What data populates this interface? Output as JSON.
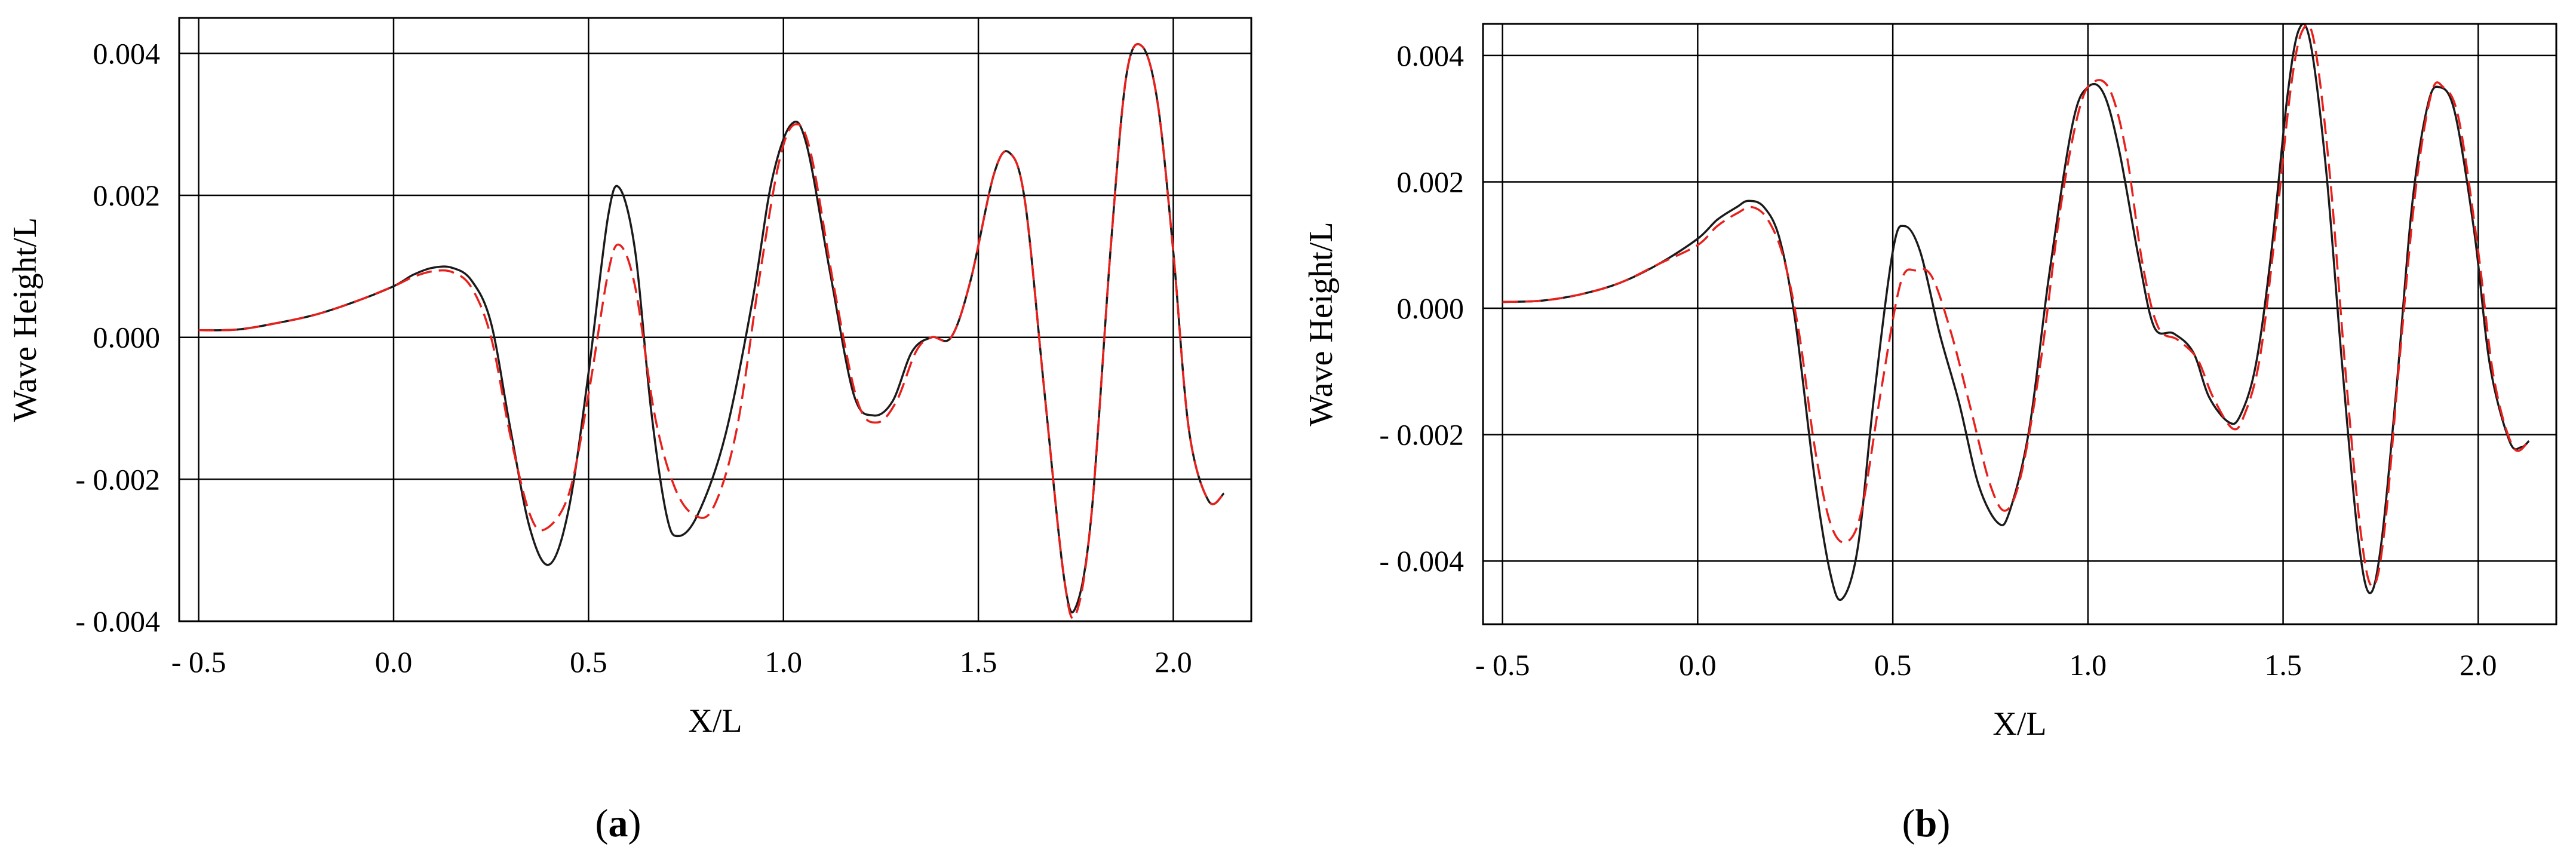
{
  "chart_data": [
    {
      "type": "line",
      "panel_label": "a",
      "xlabel": "X/L",
      "ylabel": "Wave Height/L",
      "xlim": [
        -0.55,
        2.2
      ],
      "ylim": [
        -0.004,
        0.0045
      ],
      "x_ticks": [
        -0.5,
        0.0,
        0.5,
        1.0,
        1.5,
        2.0
      ],
      "x_tick_labels": [
        "- 0.5",
        "0.0",
        "0.5",
        "1.0",
        "1.5",
        "2.0"
      ],
      "y_ticks": [
        -0.004,
        -0.002,
        0.0,
        0.002,
        0.004
      ],
      "y_tick_labels": [
        "- 0.004",
        "- 0.002",
        "0.000",
        "0.002",
        "0.004"
      ],
      "grid": true,
      "series": [
        {
          "style": "solid",
          "color": "#1a1a1a",
          "points": [
            [
              -0.5,
              0.0001
            ],
            [
              -0.4,
              0.00011
            ],
            [
              -0.3,
              0.0002
            ],
            [
              -0.2,
              0.00032
            ],
            [
              -0.1,
              0.0005
            ],
            [
              0.0,
              0.00072
            ],
            [
              0.05,
              0.00088
            ],
            [
              0.1,
              0.00098
            ],
            [
              0.15,
              0.00098
            ],
            [
              0.2,
              0.0008
            ],
            [
              0.25,
              0.0002
            ],
            [
              0.3,
              -0.0013
            ],
            [
              0.35,
              -0.0027
            ],
            [
              0.4,
              -0.0032
            ],
            [
              0.45,
              -0.0024
            ],
            [
              0.5,
              -0.0005
            ],
            [
              0.55,
              0.0017
            ],
            [
              0.58,
              0.0021
            ],
            [
              0.62,
              0.0012
            ],
            [
              0.66,
              -0.001
            ],
            [
              0.7,
              -0.0025
            ],
            [
              0.73,
              -0.0028
            ],
            [
              0.78,
              -0.0025
            ],
            [
              0.85,
              -0.0014
            ],
            [
              0.92,
              0.0005
            ],
            [
              0.97,
              0.0022
            ],
            [
              1.02,
              0.003
            ],
            [
              1.06,
              0.0027
            ],
            [
              1.12,
              0.0009
            ],
            [
              1.18,
              -0.0008
            ],
            [
              1.23,
              -0.0011
            ],
            [
              1.28,
              -0.0009
            ],
            [
              1.33,
              -0.0002
            ],
            [
              1.38,
              0.0
            ],
            [
              1.43,
              0.0
            ],
            [
              1.48,
              0.0008
            ],
            [
              1.54,
              0.0023
            ],
            [
              1.58,
              0.0026
            ],
            [
              1.62,
              0.0019
            ],
            [
              1.67,
              -0.0008
            ],
            [
              1.72,
              -0.0034
            ],
            [
              1.75,
              -0.0038
            ],
            [
              1.79,
              -0.0025
            ],
            [
              1.84,
              0.0013
            ],
            [
              1.88,
              0.0037
            ],
            [
              1.92,
              0.0041
            ],
            [
              1.96,
              0.0033
            ],
            [
              2.0,
              0.0012
            ],
            [
              2.04,
              -0.0013
            ],
            [
              2.09,
              -0.0023
            ],
            [
              2.13,
              -0.0022
            ]
          ]
        },
        {
          "style": "dashed",
          "color": "#e8201c",
          "points": [
            [
              -0.5,
              0.0001
            ],
            [
              -0.4,
              0.00011
            ],
            [
              -0.3,
              0.0002
            ],
            [
              -0.2,
              0.00032
            ],
            [
              -0.1,
              0.0005
            ],
            [
              0.0,
              0.00072
            ],
            [
              0.05,
              0.00085
            ],
            [
              0.1,
              0.00093
            ],
            [
              0.15,
              0.00092
            ],
            [
              0.2,
              0.0007
            ],
            [
              0.25,
              0.0
            ],
            [
              0.3,
              -0.0014
            ],
            [
              0.35,
              -0.0025
            ],
            [
              0.39,
              -0.0027
            ],
            [
              0.45,
              -0.0022
            ],
            [
              0.5,
              -0.0008
            ],
            [
              0.55,
              0.0009
            ],
            [
              0.58,
              0.0013
            ],
            [
              0.62,
              0.0007
            ],
            [
              0.67,
              -0.0011
            ],
            [
              0.72,
              -0.0021
            ],
            [
              0.77,
              -0.0025
            ],
            [
              0.82,
              -0.0024
            ],
            [
              0.88,
              -0.0013
            ],
            [
              0.94,
              0.0009
            ],
            [
              0.99,
              0.0025
            ],
            [
              1.03,
              0.003
            ],
            [
              1.07,
              0.0026
            ],
            [
              1.13,
              0.0007
            ],
            [
              1.19,
              -0.0009
            ],
            [
              1.24,
              -0.0012
            ],
            [
              1.29,
              -0.0009
            ],
            [
              1.34,
              -0.0002
            ],
            [
              1.38,
              0.0
            ],
            [
              1.43,
              0.0
            ],
            [
              1.48,
              0.0008
            ],
            [
              1.54,
              0.0023
            ],
            [
              1.58,
              0.0026
            ],
            [
              1.62,
              0.0019
            ],
            [
              1.67,
              -0.0008
            ],
            [
              1.72,
              -0.0034
            ],
            [
              1.75,
              -0.0039
            ],
            [
              1.79,
              -0.0025
            ],
            [
              1.84,
              0.0013
            ],
            [
              1.88,
              0.0037
            ],
            [
              1.92,
              0.0041
            ],
            [
              1.96,
              0.0033
            ],
            [
              2.0,
              0.0012
            ],
            [
              2.04,
              -0.0013
            ],
            [
              2.09,
              -0.0023
            ],
            [
              2.13,
              -0.0022
            ]
          ]
        }
      ]
    },
    {
      "type": "line",
      "panel_label": "b",
      "xlabel": "X/L",
      "ylabel": "Wave Height/L",
      "xlim": [
        -0.55,
        2.2
      ],
      "ylim": [
        -0.005,
        0.0045
      ],
      "x_ticks": [
        -0.5,
        0.0,
        0.5,
        1.0,
        1.5,
        2.0
      ],
      "x_tick_labels": [
        "- 0.5",
        "0.0",
        "0.5",
        "1.0",
        "1.5",
        "2.0"
      ],
      "y_ticks": [
        -0.004,
        -0.002,
        0.0,
        0.002,
        0.004
      ],
      "y_tick_labels": [
        "- 0.004",
        "- 0.002",
        "0.000",
        "0.002",
        "0.004"
      ],
      "grid": true,
      "series": [
        {
          "style": "solid",
          "color": "#1a1a1a",
          "points": [
            [
              -0.5,
              0.0001
            ],
            [
              -0.4,
              0.00012
            ],
            [
              -0.3,
              0.00022
            ],
            [
              -0.2,
              0.0004
            ],
            [
              -0.1,
              0.0007
            ],
            [
              0.0,
              0.0011
            ],
            [
              0.05,
              0.0014
            ],
            [
              0.1,
              0.0016
            ],
            [
              0.13,
              0.0017
            ],
            [
              0.17,
              0.0016
            ],
            [
              0.21,
              0.0011
            ],
            [
              0.25,
              -0.0002
            ],
            [
              0.3,
              -0.0027
            ],
            [
              0.34,
              -0.0042
            ],
            [
              0.37,
              -0.0046
            ],
            [
              0.41,
              -0.0038
            ],
            [
              0.45,
              -0.0015
            ],
            [
              0.5,
              0.0009
            ],
            [
              0.53,
              0.0013
            ],
            [
              0.57,
              0.0009
            ],
            [
              0.62,
              -0.0004
            ],
            [
              0.67,
              -0.0015
            ],
            [
              0.72,
              -0.0028
            ],
            [
              0.77,
              -0.0034
            ],
            [
              0.8,
              -0.0032
            ],
            [
              0.85,
              -0.0019
            ],
            [
              0.9,
              0.0005
            ],
            [
              0.96,
              0.0029
            ],
            [
              1.0,
              0.0035
            ],
            [
              1.04,
              0.0034
            ],
            [
              1.08,
              0.0025
            ],
            [
              1.13,
              0.0008
            ],
            [
              1.17,
              -0.0003
            ],
            [
              1.22,
              -0.0004
            ],
            [
              1.27,
              -0.0007
            ],
            [
              1.31,
              -0.0014
            ],
            [
              1.36,
              -0.0018
            ],
            [
              1.39,
              -0.0017
            ],
            [
              1.43,
              -0.0009
            ],
            [
              1.47,
              0.0009
            ],
            [
              1.51,
              0.0033
            ],
            [
              1.54,
              0.0044
            ],
            [
              1.57,
              0.0042
            ],
            [
              1.61,
              0.0022
            ],
            [
              1.65,
              -0.0008
            ],
            [
              1.69,
              -0.0035
            ],
            [
              1.72,
              -0.0045
            ],
            [
              1.75,
              -0.0038
            ],
            [
              1.79,
              -0.0013
            ],
            [
              1.83,
              0.0016
            ],
            [
              1.87,
              0.0032
            ],
            [
              1.9,
              0.0035
            ],
            [
              1.94,
              0.0031
            ],
            [
              1.99,
              0.0012
            ],
            [
              2.03,
              -0.0009
            ],
            [
              2.08,
              -0.0021
            ],
            [
              2.11,
              -0.0022
            ],
            [
              2.13,
              -0.0021
            ]
          ]
        },
        {
          "style": "dashed",
          "color": "#e8201c",
          "points": [
            [
              -0.5,
              0.0001
            ],
            [
              -0.4,
              0.00012
            ],
            [
              -0.3,
              0.00022
            ],
            [
              -0.2,
              0.0004
            ],
            [
              -0.1,
              0.0007
            ],
            [
              0.0,
              0.001
            ],
            [
              0.05,
              0.0013
            ],
            [
              0.1,
              0.0015
            ],
            [
              0.14,
              0.0016
            ],
            [
              0.18,
              0.0014
            ],
            [
              0.22,
              0.0008
            ],
            [
              0.26,
              -0.0004
            ],
            [
              0.3,
              -0.0022
            ],
            [
              0.34,
              -0.0034
            ],
            [
              0.38,
              -0.0037
            ],
            [
              0.42,
              -0.0032
            ],
            [
              0.47,
              -0.0013
            ],
            [
              0.52,
              0.0004
            ],
            [
              0.56,
              0.0006
            ],
            [
              0.6,
              0.0005
            ],
            [
              0.65,
              -0.0004
            ],
            [
              0.7,
              -0.0016
            ],
            [
              0.75,
              -0.0028
            ],
            [
              0.79,
              -0.0032
            ],
            [
              0.83,
              -0.0026
            ],
            [
              0.88,
              -0.0008
            ],
            [
              0.93,
              0.0016
            ],
            [
              0.98,
              0.0032
            ],
            [
              1.02,
              0.0036
            ],
            [
              1.06,
              0.0034
            ],
            [
              1.1,
              0.0024
            ],
            [
              1.14,
              0.0007
            ],
            [
              1.18,
              -0.0003
            ],
            [
              1.23,
              -0.0005
            ],
            [
              1.28,
              -0.0008
            ],
            [
              1.32,
              -0.0014
            ],
            [
              1.37,
              -0.0019
            ],
            [
              1.4,
              -0.0017
            ],
            [
              1.44,
              -0.0008
            ],
            [
              1.48,
              0.0012
            ],
            [
              1.52,
              0.0035
            ],
            [
              1.55,
              0.0044
            ],
            [
              1.58,
              0.0042
            ],
            [
              1.62,
              0.0021
            ],
            [
              1.66,
              -0.001
            ],
            [
              1.7,
              -0.0036
            ],
            [
              1.73,
              -0.0044
            ],
            [
              1.76,
              -0.0035
            ],
            [
              1.8,
              -0.0007
            ],
            [
              1.84,
              0.0019
            ],
            [
              1.88,
              0.0034
            ],
            [
              1.91,
              0.0035
            ],
            [
              1.95,
              0.003
            ],
            [
              2.0,
              0.0009
            ],
            [
              2.04,
              -0.0011
            ],
            [
              2.09,
              -0.0022
            ],
            [
              2.13,
              -0.0021
            ]
          ]
        }
      ]
    }
  ]
}
